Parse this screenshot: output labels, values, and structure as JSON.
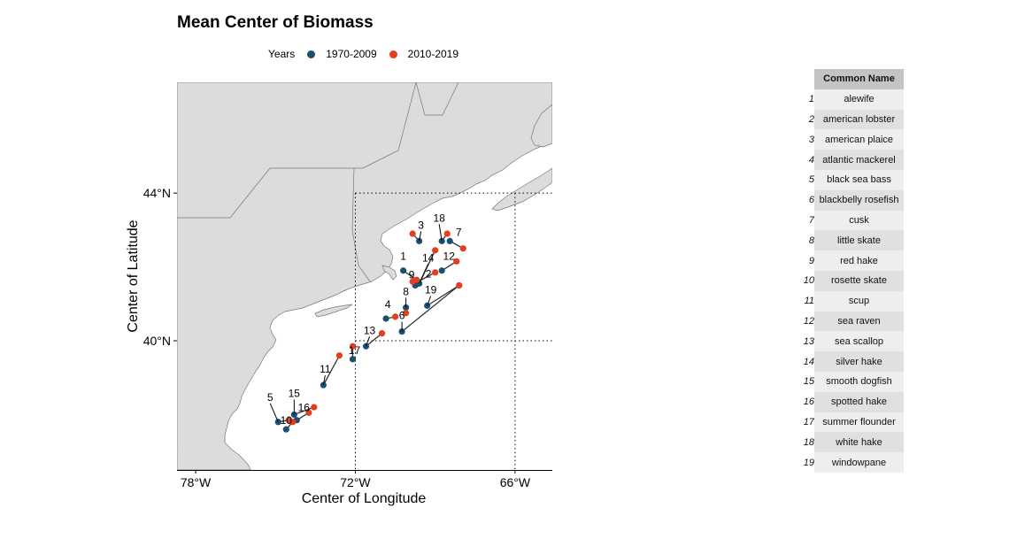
{
  "chart_data": {
    "type": "scatter",
    "title": "Mean Center of Biomass",
    "xlabel": "Center of Longitude",
    "ylabel": "Center of Latitude",
    "xlim": [
      -78.7,
      -64.6
    ],
    "ylim": [
      36.5,
      47.0
    ],
    "x_ticks": [
      -78,
      -72,
      -66
    ],
    "x_tick_labels": [
      "78°W",
      "72°W",
      "66°W"
    ],
    "y_ticks": [
      40,
      44
    ],
    "y_tick_labels": [
      "40°N",
      "44°N"
    ],
    "legend": {
      "title": "Years",
      "placement": "top",
      "entries": [
        {
          "label": "1970-2009",
          "color": "#1b4f72"
        },
        {
          "label": "2010-2019",
          "color": "#e2401c"
        }
      ]
    },
    "series": [
      {
        "name": "1970-2009",
        "color": "#1b4f72",
        "points": [
          {
            "id": 1,
            "lon": -70.2,
            "lat": 41.9
          },
          {
            "id": 2,
            "lon": -69.65,
            "lat": 41.6
          },
          {
            "id": 3,
            "lon": -69.6,
            "lat": 42.7
          },
          {
            "id": 4,
            "lon": -70.85,
            "lat": 40.6
          },
          {
            "id": 5,
            "lon": -74.9,
            "lat": 37.8
          },
          {
            "id": 6,
            "lon": -70.25,
            "lat": 40.25
          },
          {
            "id": 7,
            "lon": -68.45,
            "lat": 42.7
          },
          {
            "id": 8,
            "lon": -70.1,
            "lat": 40.9
          },
          {
            "id": 9,
            "lon": -69.75,
            "lat": 41.5
          },
          {
            "id": 10,
            "lon": -74.6,
            "lat": 37.6
          },
          {
            "id": 11,
            "lon": -73.2,
            "lat": 38.8
          },
          {
            "id": 12,
            "lon": -68.75,
            "lat": 41.9
          },
          {
            "id": 13,
            "lon": -71.6,
            "lat": 39.85
          },
          {
            "id": 14,
            "lon": -69.6,
            "lat": 41.55
          },
          {
            "id": 15,
            "lon": -74.3,
            "lat": 38.0
          },
          {
            "id": 16,
            "lon": -74.2,
            "lat": 37.85
          },
          {
            "id": 17,
            "lon": -72.1,
            "lat": 39.5
          },
          {
            "id": 18,
            "lon": -68.75,
            "lat": 42.7
          },
          {
            "id": 19,
            "lon": -69.3,
            "lat": 40.95
          }
        ]
      },
      {
        "name": "2010-2019",
        "color": "#e2401c",
        "points": [
          {
            "id": 1,
            "lon": -69.7,
            "lat": 41.65
          },
          {
            "id": 2,
            "lon": -69.0,
            "lat": 41.85
          },
          {
            "id": 3,
            "lon": -69.85,
            "lat": 42.9
          },
          {
            "id": 4,
            "lon": -70.5,
            "lat": 40.65
          },
          {
            "id": 5,
            "lon": -74.5,
            "lat": 37.85
          },
          {
            "id": 6,
            "lon": -68.1,
            "lat": 41.5
          },
          {
            "id": 7,
            "lon": -67.95,
            "lat": 42.5
          },
          {
            "id": 8,
            "lon": -70.1,
            "lat": 40.75
          },
          {
            "id": 9,
            "lon": -69.85,
            "lat": 41.6
          },
          {
            "id": 10,
            "lon": -74.35,
            "lat": 37.8
          },
          {
            "id": 11,
            "lon": -72.6,
            "lat": 39.6
          },
          {
            "id": 12,
            "lon": -68.2,
            "lat": 42.15
          },
          {
            "id": 13,
            "lon": -71.0,
            "lat": 40.2
          },
          {
            "id": 14,
            "lon": -69.0,
            "lat": 42.45
          },
          {
            "id": 15,
            "lon": -73.55,
            "lat": 38.2
          },
          {
            "id": 16,
            "lon": -73.75,
            "lat": 38.05
          },
          {
            "id": 17,
            "lon": -72.1,
            "lat": 39.85
          },
          {
            "id": 18,
            "lon": -68.55,
            "lat": 42.9
          },
          {
            "id": 19,
            "lon": -68.1,
            "lat": 41.5
          }
        ]
      }
    ],
    "reference_lines": {
      "lon": [
        -72,
        -66
      ],
      "lat": [
        40,
        44
      ],
      "style": "dotted"
    },
    "grid": false
  },
  "table": {
    "header": "Common Name",
    "rows": [
      {
        "idx": "1",
        "name": "alewife"
      },
      {
        "idx": "2",
        "name": "american lobster"
      },
      {
        "idx": "3",
        "name": "american plaice"
      },
      {
        "idx": "4",
        "name": "atlantic mackerel"
      },
      {
        "idx": "5",
        "name": "black sea bass"
      },
      {
        "idx": "6",
        "name": "blackbelly rosefish"
      },
      {
        "idx": "7",
        "name": "cusk"
      },
      {
        "idx": "8",
        "name": "little skate"
      },
      {
        "idx": "9",
        "name": "red hake"
      },
      {
        "idx": "10",
        "name": "rosette skate"
      },
      {
        "idx": "11",
        "name": "scup"
      },
      {
        "idx": "12",
        "name": "sea raven"
      },
      {
        "idx": "13",
        "name": "sea scallop"
      },
      {
        "idx": "14",
        "name": "silver hake"
      },
      {
        "idx": "15",
        "name": "smooth dogfish"
      },
      {
        "idx": "16",
        "name": "spotted hake"
      },
      {
        "idx": "17",
        "name": "summer flounder"
      },
      {
        "idx": "18",
        "name": "white hake"
      },
      {
        "idx": "19",
        "name": "windowpane"
      }
    ]
  }
}
